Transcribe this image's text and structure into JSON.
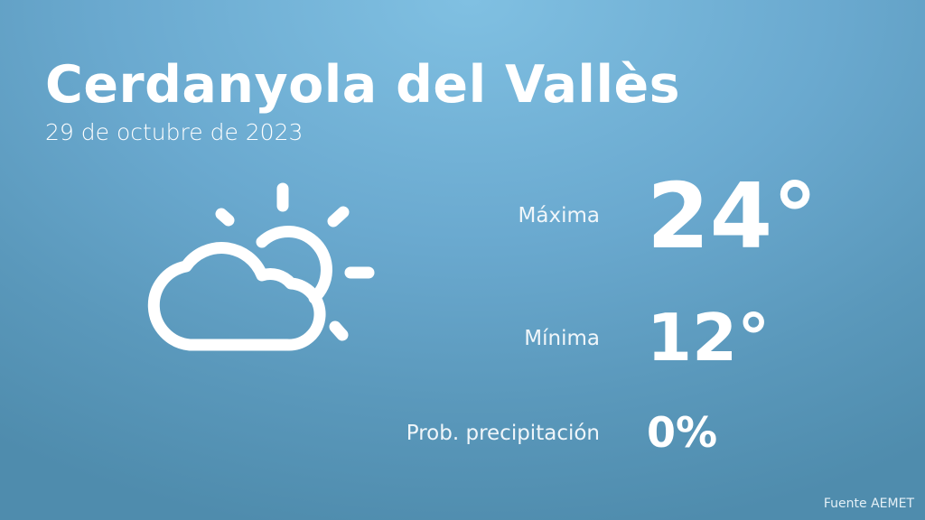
{
  "location": "Cerdanyola del Vallès",
  "date": "29 de octubre de 2023",
  "icon": "partly-cloudy-icon",
  "max": {
    "label": "Máxima",
    "value": "24°"
  },
  "min": {
    "label": "Mínima",
    "value": "12°"
  },
  "precip": {
    "label": "Prob. precipitación",
    "value": "0%"
  },
  "source": "Fuente AEMET"
}
